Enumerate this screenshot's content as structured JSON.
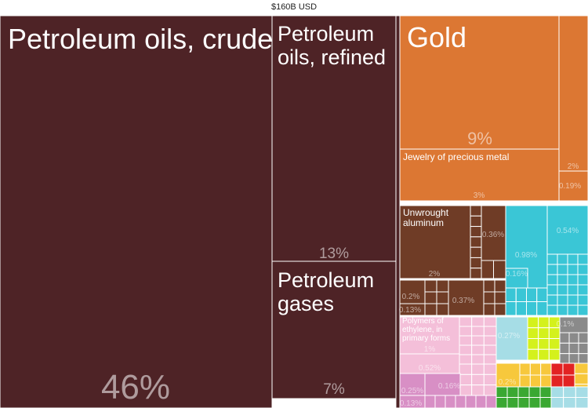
{
  "total_label": "$160B USD",
  "colors": {
    "petroleum": "#4e2326",
    "metals": "#dc7733",
    "aluminum": "#6f3c26",
    "teal": "#3ac6d6",
    "plastics": "#f4bfd9",
    "magenta": "#d88fc5",
    "green": "#3aa832",
    "lime": "#d4f11c",
    "gray": "#8a8a8a",
    "red": "#e22323",
    "yellow": "#f7c83c",
    "lightblue": "#a6dde6"
  },
  "chart_data": {
    "type": "treemap",
    "title": "$160B USD",
    "items": [
      {
        "name": "Petroleum oils, crude",
        "share": "46%",
        "color": "petroleum"
      },
      {
        "name": "Petroleum oils, refined",
        "share": "13%",
        "color": "petroleum"
      },
      {
        "name": "Petroleum gases",
        "share": "7%",
        "color": "petroleum"
      },
      {
        "name": "Gold",
        "share": "9%",
        "color": "metals"
      },
      {
        "name": "Jewelry of precious metal",
        "share": "3%",
        "color": "metals"
      },
      {
        "name": "",
        "share": "2%",
        "color": "metals"
      },
      {
        "name": "",
        "share": "0.19%",
        "color": "metals"
      },
      {
        "name": "Unwrought aluminum",
        "share": "2%",
        "color": "aluminum"
      },
      {
        "name": "",
        "share": "0.36%",
        "color": "aluminum"
      },
      {
        "name": "",
        "share": "0.37%",
        "color": "aluminum"
      },
      {
        "name": "",
        "share": "0.2%",
        "color": "aluminum"
      },
      {
        "name": "",
        "share": "0.13%",
        "color": "aluminum"
      },
      {
        "name": "",
        "share": "0.98%",
        "color": "teal"
      },
      {
        "name": "",
        "share": "0.54%",
        "color": "teal"
      },
      {
        "name": "",
        "share": "0.16%",
        "color": "teal"
      },
      {
        "name": "Polymers of ethylene, in primary forms",
        "share": "1%",
        "color": "plastics"
      },
      {
        "name": "",
        "share": "0.52%",
        "color": "plastics"
      },
      {
        "name": "",
        "share": "0.27%",
        "color": "lightblue"
      },
      {
        "name": "",
        "share": "0.25%",
        "color": "magenta"
      },
      {
        "name": "",
        "share": "0.16%",
        "color": "magenta"
      },
      {
        "name": "",
        "share": "0.13%",
        "color": "magenta"
      },
      {
        "name": "",
        "share": "0.2%",
        "color": "yellow"
      },
      {
        "name": "",
        "share": "0.1%",
        "color": "gray"
      }
    ]
  }
}
